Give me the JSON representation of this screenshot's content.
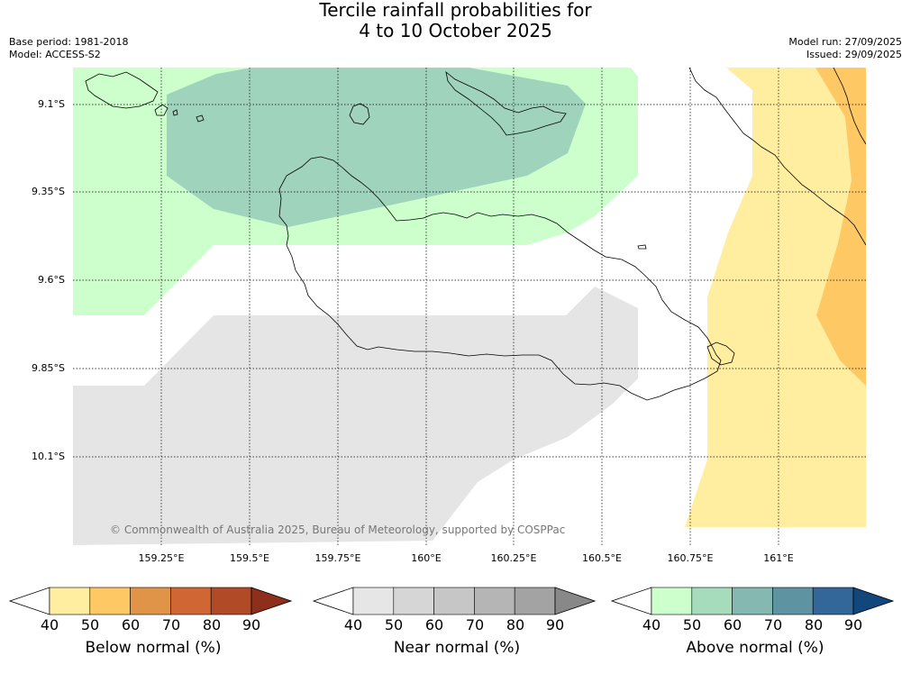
{
  "title_line1": "Tercile rainfall probabilities for",
  "title_line2": "4 to 10 October 2025",
  "base_period": "Base period: 1981-2018",
  "model": "Model: ACCESS-S2",
  "model_run": "Model run: 27/09/2025",
  "issued": "Issued: 29/09/2025",
  "copyright": "© Commonwealth of Australia 2025, Bureau of Meteorology, supported by COSPPac",
  "lat_labels": [
    "9.1°S",
    "9.35°S",
    "9.6°S",
    "9.85°S",
    "10.1°S"
  ],
  "lon_labels": [
    "159.25°E",
    "159.5°E",
    "159.75°E",
    "160°E",
    "160.25°E",
    "160.5°E",
    "160.75°E",
    "161°E"
  ],
  "colorbars": [
    {
      "title": "Below normal (%)",
      "ticks": [
        "40",
        "50",
        "60",
        "70",
        "80",
        "90"
      ],
      "colors": [
        "#ffeda0",
        "#fec965",
        "#e09447",
        "#d06634",
        "#b14a26",
        "#8e2f1c"
      ]
    },
    {
      "title": "Near normal (%)",
      "ticks": [
        "40",
        "50",
        "60",
        "70",
        "80",
        "90"
      ],
      "colors": [
        "#e6e6e6",
        "#d6d6d6",
        "#c6c6c6",
        "#b5b5b5",
        "#a3a3a3",
        "#888888"
      ]
    },
    {
      "title": "Above normal (%)",
      "ticks": [
        "40",
        "50",
        "60",
        "70",
        "80",
        "90"
      ],
      "colors": [
        "#ccffcc",
        "#a6dbbc",
        "#84b8b0",
        "#5e94a2",
        "#336699",
        "#12477e"
      ]
    }
  ]
}
